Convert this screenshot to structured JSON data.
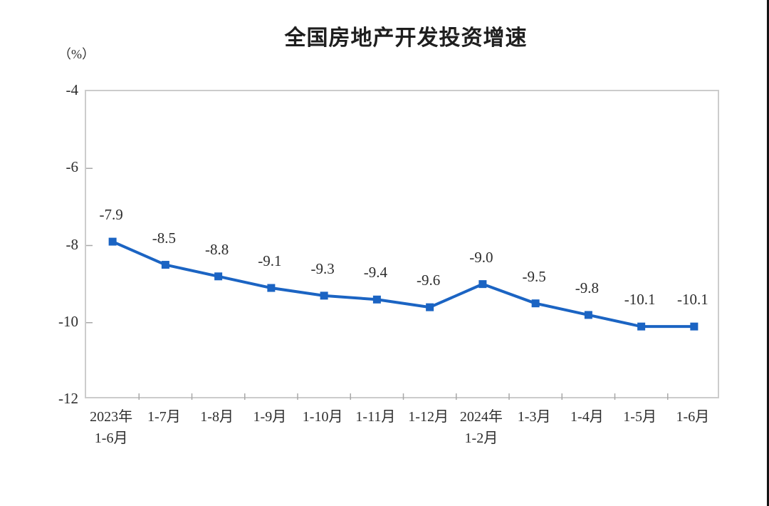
{
  "chart_data": {
    "type": "line",
    "title": "全国房地产开发投资增速",
    "unit_label": "（%）",
    "categories": [
      "2023年\n1-6月",
      "1-7月",
      "1-8月",
      "1-9月",
      "1-10月",
      "1-11月",
      "1-12月",
      "2024年\n1-2月",
      "1-3月",
      "1-4月",
      "1-5月",
      "1-6月"
    ],
    "values": [
      -7.9,
      -8.5,
      -8.8,
      -9.1,
      -9.3,
      -9.4,
      -9.6,
      -9.0,
      -9.5,
      -9.8,
      -10.1,
      -10.1
    ],
    "data_labels": [
      "-7.9",
      "-8.5",
      "-8.8",
      "-9.1",
      "-9.3",
      "-9.4",
      "-9.6",
      "-9.0",
      "-9.5",
      "-9.8",
      "-10.1",
      "-10.1"
    ],
    "y_ticks": [
      "-4",
      "-6",
      "-8",
      "-10",
      "-12"
    ],
    "y_tick_values": [
      -4,
      -6,
      -8,
      -10,
      -12
    ],
    "ylim": [
      -12,
      -4
    ],
    "grid": false,
    "legend": "none",
    "line_color": "#1b64c3",
    "marker": "square",
    "axis_color": "#cccccc",
    "tick_color": "#a8a8a8",
    "text_color": "#2d2d2d"
  }
}
